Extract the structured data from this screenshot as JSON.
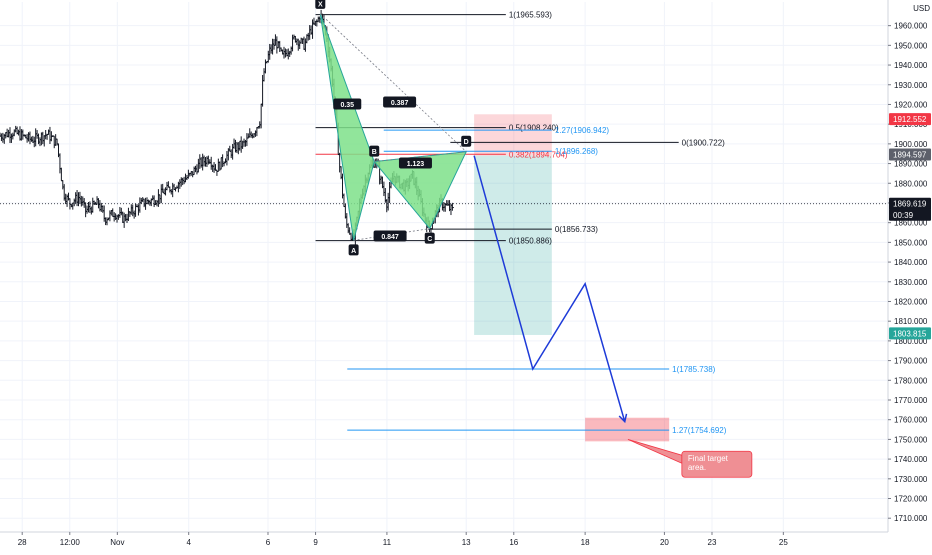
{
  "chart_data": {
    "type": "candlestick",
    "currency": "USD",
    "y_axis": {
      "ylim": [
        1703,
        1972
      ],
      "ticks": [
        1710,
        1720,
        1730,
        1740,
        1750,
        1760,
        1770,
        1780,
        1790,
        1800,
        1810,
        1820,
        1830,
        1840,
        1850,
        1860,
        1870,
        1880,
        1890,
        1900,
        1910,
        1920,
        1930,
        1940,
        1950,
        1960
      ],
      "tick_labels": [
        "1710.000",
        "1720.000",
        "1730.000",
        "1740.000",
        "1750.000",
        "1760.000",
        "1770.000",
        "1780.000",
        "1790.000",
        "1800.000",
        "1810.000",
        "1820.000",
        "1830.000",
        "1840.000",
        "1850.000",
        "1860.000",
        "1870.000",
        "1880.000",
        "1890.000",
        "1900.000",
        "1910.000",
        "1920.000",
        "1930.000",
        "1940.000",
        "1950.000",
        "1960.000"
      ]
    },
    "x_axis": {
      "xlim": [
        -0.7,
        27.3
      ],
      "ticks": [
        {
          "t": 0.0,
          "label": "28"
        },
        {
          "t": 1.5,
          "label": "12:00"
        },
        {
          "t": 3.0,
          "label": "Nov"
        },
        {
          "t": 5.25,
          "label": "4"
        },
        {
          "t": 7.75,
          "label": "6"
        },
        {
          "t": 9.25,
          "label": "9"
        },
        {
          "t": 11.5,
          "label": "11"
        },
        {
          "t": 14.0,
          "label": "13"
        },
        {
          "t": 15.5,
          "label": "16"
        },
        {
          "t": 17.75,
          "label": "18"
        },
        {
          "t": 20.25,
          "label": "20"
        },
        {
          "t": 21.75,
          "label": "23"
        },
        {
          "t": 24.0,
          "label": "25"
        }
      ]
    },
    "price_path": [
      [
        -0.7,
        1904
      ],
      [
        -0.3,
        1906
      ],
      [
        0.3,
        1902
      ],
      [
        0.8,
        1905
      ],
      [
        1.1,
        1900
      ],
      [
        1.3,
        1875
      ],
      [
        1.5,
        1870
      ],
      [
        1.8,
        1873
      ],
      [
        2.0,
        1866
      ],
      [
        2.4,
        1870
      ],
      [
        2.6,
        1862
      ],
      [
        2.9,
        1865
      ],
      [
        3.2,
        1862
      ],
      [
        3.5,
        1866
      ],
      [
        3.8,
        1870
      ],
      [
        4.2,
        1872
      ],
      [
        4.5,
        1876
      ],
      [
        4.9,
        1880
      ],
      [
        5.3,
        1884
      ],
      [
        5.6,
        1890
      ],
      [
        5.9,
        1893
      ],
      [
        6.1,
        1887
      ],
      [
        6.4,
        1893
      ],
      [
        6.7,
        1898
      ],
      [
        7.0,
        1900
      ],
      [
        7.3,
        1906
      ],
      [
        7.5,
        1912
      ],
      [
        7.6,
        1935
      ],
      [
        7.8,
        1947
      ],
      [
        8.0,
        1952
      ],
      [
        8.2,
        1944
      ],
      [
        8.4,
        1948
      ],
      [
        8.6,
        1954
      ],
      [
        8.9,
        1950
      ],
      [
        9.1,
        1958
      ],
      [
        9.3,
        1962
      ],
      [
        9.4,
        1966
      ],
      [
        9.6,
        1955
      ],
      [
        9.8,
        1930
      ],
      [
        10.0,
        1890
      ],
      [
        10.2,
        1860
      ],
      [
        10.45,
        1851
      ],
      [
        10.7,
        1875
      ],
      [
        10.9,
        1886
      ],
      [
        11.15,
        1892
      ],
      [
        11.3,
        1882
      ],
      [
        11.5,
        1870
      ],
      [
        11.7,
        1884
      ],
      [
        11.9,
        1880
      ],
      [
        12.1,
        1878
      ],
      [
        12.3,
        1884
      ],
      [
        12.5,
        1874
      ],
      [
        12.7,
        1862
      ],
      [
        12.85,
        1857
      ],
      [
        13.0,
        1864
      ],
      [
        13.2,
        1870
      ],
      [
        13.4,
        1868
      ],
      [
        13.6,
        1866
      ]
    ],
    "horizontal_levels": [
      {
        "label": "1(1965.593)",
        "value": 1965.593,
        "color": "#131722",
        "t0": 9.25,
        "t1": 15.25
      },
      {
        "label": "0.5(1908.240)",
        "value": 1908.24,
        "color": "#131722",
        "t0": 9.25,
        "t1": 15.25
      },
      {
        "label": "0.382(1894.704)",
        "value": 1894.704,
        "color": "#f23645",
        "t0": 9.25,
        "t1": 15.25
      },
      {
        "label": "0(1850.886)",
        "value": 1850.886,
        "color": "#131722",
        "t0": 9.25,
        "t1": 15.25
      },
      {
        "label": "1.27(1906.942)",
        "value": 1906.942,
        "color": "#2196f3",
        "t0": 11.4,
        "t1": 16.7
      },
      {
        "label": "1(1896.268)",
        "value": 1896.268,
        "color": "#2196f3",
        "t0": 11.4,
        "t1": 16.7
      },
      {
        "label": "0(1900.722)",
        "value": 1900.722,
        "color": "#131722",
        "t0": 13.5,
        "t1": 20.7
      },
      {
        "label": "0(1856.733)",
        "value": 1856.733,
        "color": "#131722",
        "t0": 12.8,
        "t1": 16.7
      },
      {
        "label": "1(1785.738)",
        "value": 1785.738,
        "color": "#2196f3",
        "t0": 10.25,
        "t1": 20.4
      },
      {
        "label": "1.27(1754.692)",
        "value": 1754.692,
        "color": "#2196f3",
        "t0": 10.25,
        "t1": 20.4
      }
    ],
    "harmonic_pattern": {
      "points": [
        {
          "label": "X",
          "t": 9.4,
          "y": 1966
        },
        {
          "label": "A",
          "t": 10.45,
          "y": 1851
        },
        {
          "label": "B",
          "t": 11.1,
          "y": 1891
        },
        {
          "label": "C",
          "t": 12.85,
          "y": 1857
        },
        {
          "label": "D",
          "t": 14.0,
          "y": 1896
        }
      ],
      "ratios": [
        {
          "label": "0.35",
          "t": 10.25,
          "y": 1920
        },
        {
          "label": "0.387",
          "t": 11.9,
          "y": 1921
        },
        {
          "label": "1.123",
          "t": 12.4,
          "y": 1890
        },
        {
          "label": "0.847",
          "t": 11.6,
          "y": 1853
        }
      ],
      "fill_color": "#7ee08a",
      "line_color": "#26a69a"
    },
    "projection_path": [
      [
        14.25,
        1894
      ],
      [
        16.1,
        1785.738
      ],
      [
        17.75,
        1829
      ],
      [
        19.0,
        1759
      ]
    ],
    "zones": [
      {
        "kind": "stop",
        "t0": 14.25,
        "t1": 16.7,
        "y0": 1894,
        "y1": 1915,
        "color": "rgba(242,54,69,0.2)"
      },
      {
        "kind": "target",
        "t0": 14.25,
        "t1": 16.7,
        "y0": 1803,
        "y1": 1894,
        "color": "rgba(38,166,154,0.22)"
      },
      {
        "kind": "final",
        "t0": 17.75,
        "t1": 20.4,
        "y0": 1749,
        "y1": 1761,
        "color": "rgba(242,54,69,0.35)"
      }
    ],
    "price_tags": [
      {
        "value": 1912.552,
        "label": "1912.552",
        "color": "#f23645"
      },
      {
        "value": 1894.597,
        "label": "1894.597",
        "color": "#5d606b"
      },
      {
        "value": 1869.619,
        "label": "1869.619",
        "color": "#131722"
      },
      {
        "value": 1864.0,
        "label": "00:39",
        "color": "#131722"
      },
      {
        "value": 1803.815,
        "label": "1803.815",
        "color": "#26a69a"
      }
    ],
    "current_price": 1869.619,
    "annotation": {
      "text_lines": [
        "Final target",
        "area."
      ],
      "t": 20.8,
      "y": 1744,
      "anchor_t": 19.1,
      "anchor_y": 1750
    },
    "colors": {
      "projection": "#1e3bd8",
      "up": "#131722",
      "grid": "#f0f3fa"
    }
  }
}
